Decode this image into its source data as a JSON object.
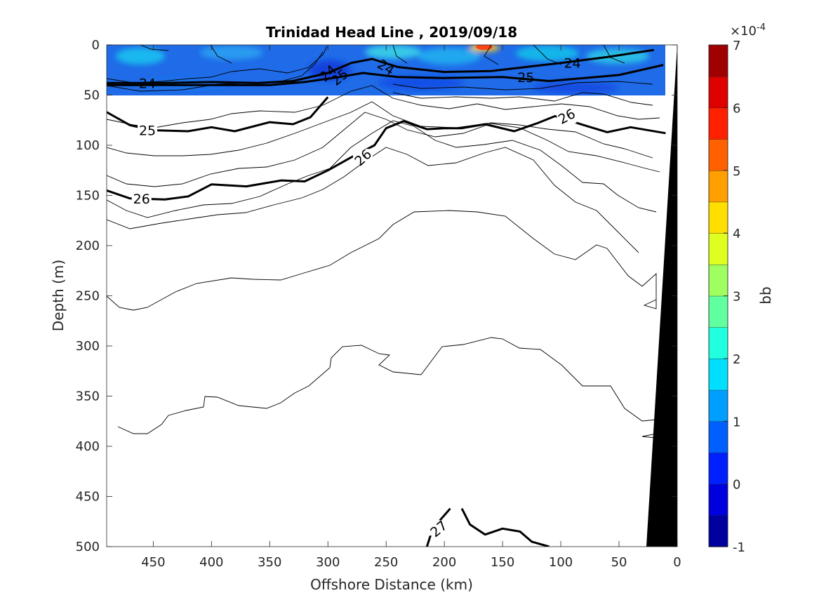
{
  "chart_data": {
    "type": "contour",
    "title": "Trinidad Head Line , 2019/09/18",
    "xlabel": "Offshore Distance (km)",
    "ylabel": "Depth (m)",
    "xlim": [
      490,
      0
    ],
    "ylim": [
      0,
      500
    ],
    "x_reversed": true,
    "y_reversed": true,
    "xticks": [
      450,
      400,
      350,
      300,
      250,
      200,
      150,
      100,
      50,
      0
    ],
    "yticks": [
      0,
      50,
      100,
      150,
      200,
      250,
      300,
      350,
      400,
      450,
      500
    ],
    "colorbar": {
      "label": "bb",
      "exponent_label": "×10",
      "exponent_power": "-4",
      "ticks": [
        "7",
        "6",
        "5",
        "4",
        "3",
        "2",
        "1",
        "0",
        "-1"
      ],
      "range": [
        -1,
        7
      ],
      "levels": 16,
      "colormap": "jet"
    },
    "filled_region": {
      "depth_range": [
        0,
        50
      ],
      "x_range": [
        490,
        12
      ]
    },
    "contour_labels": [
      "24",
      "24",
      "24",
      "24",
      "25",
      "25",
      "25",
      "26",
      "26",
      "26",
      "27"
    ],
    "density_contours": [
      {
        "level": "24",
        "points": [
          [
            490,
            38
          ],
          [
            440,
            38
          ],
          [
            400,
            37
          ],
          [
            360,
            38
          ],
          [
            330,
            36
          ],
          [
            300,
            28
          ],
          [
            280,
            18
          ],
          [
            262,
            14
          ],
          [
            240,
            22
          ],
          [
            200,
            27
          ],
          [
            160,
            26
          ],
          [
            130,
            22
          ],
          [
            100,
            18
          ],
          [
            60,
            12
          ],
          [
            20,
            5
          ]
        ]
      },
      {
        "level": "25",
        "points": [
          [
            490,
            40
          ],
          [
            440,
            40
          ],
          [
            400,
            40
          ],
          [
            350,
            40
          ],
          [
            320,
            37
          ],
          [
            290,
            32
          ],
          [
            270,
            28
          ],
          [
            240,
            32
          ],
          [
            200,
            33
          ],
          [
            150,
            32
          ],
          [
            110,
            36
          ],
          [
            80,
            33
          ],
          [
            50,
            30
          ],
          [
            12,
            20
          ]
        ]
      },
      {
        "level": "25",
        "points": [
          [
            490,
            67
          ],
          [
            470,
            80
          ],
          [
            450,
            85
          ],
          [
            420,
            86
          ],
          [
            400,
            82
          ],
          [
            380,
            86
          ],
          [
            350,
            77
          ],
          [
            330,
            79
          ],
          [
            315,
            72
          ],
          [
            300,
            52
          ]
        ]
      },
      {
        "level": "26",
        "points": [
          [
            490,
            145
          ],
          [
            470,
            153
          ],
          [
            440,
            154
          ],
          [
            420,
            151
          ],
          [
            400,
            139
          ],
          [
            370,
            141
          ],
          [
            340,
            135
          ],
          [
            320,
            136
          ],
          [
            300,
            125
          ],
          [
            280,
            112
          ],
          [
            260,
            100
          ],
          [
            250,
            83
          ],
          [
            235,
            76
          ],
          [
            215,
            84
          ],
          [
            200,
            83
          ],
          [
            185,
            83
          ],
          [
            165,
            79
          ],
          [
            140,
            86
          ],
          [
            120,
            78
          ],
          [
            105,
            71
          ],
          [
            80,
            80
          ],
          [
            60,
            87
          ],
          [
            40,
            82
          ],
          [
            10,
            88
          ]
        ]
      },
      {
        "level": "27",
        "points": [
          [
            215,
            500
          ],
          [
            210,
            482
          ],
          [
            195,
            462
          ]
        ]
      },
      {
        "level": "27",
        "points": [
          [
            185,
            462
          ],
          [
            178,
            478
          ],
          [
            165,
            488
          ],
          [
            150,
            482
          ],
          [
            135,
            485
          ],
          [
            125,
            495
          ],
          [
            110,
            500
          ]
        ]
      }
    ],
    "annotations": {
      "black_mask": "bottom topography (0–25 km)"
    }
  }
}
